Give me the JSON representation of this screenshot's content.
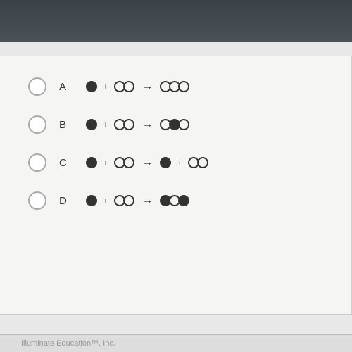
{
  "question": {
    "options": [
      {
        "id": "A",
        "label": "A",
        "equation": {
          "left": [
            {
              "type": "single",
              "atoms": [
                "dark"
              ]
            },
            {
              "type": "plus"
            },
            {
              "type": "molecule",
              "atoms": [
                "light",
                "light"
              ]
            }
          ],
          "right": [
            {
              "type": "molecule",
              "atoms": [
                "light",
                "light",
                "light"
              ]
            }
          ]
        }
      },
      {
        "id": "B",
        "label": "B",
        "equation": {
          "left": [
            {
              "type": "single",
              "atoms": [
                "dark"
              ]
            },
            {
              "type": "plus"
            },
            {
              "type": "molecule",
              "atoms": [
                "light",
                "light"
              ]
            }
          ],
          "right": [
            {
              "type": "molecule",
              "atoms": [
                "light",
                "dark",
                "light"
              ]
            }
          ]
        }
      },
      {
        "id": "C",
        "label": "C",
        "equation": {
          "left": [
            {
              "type": "single",
              "atoms": [
                "dark"
              ]
            },
            {
              "type": "plus"
            },
            {
              "type": "molecule",
              "atoms": [
                "light",
                "light"
              ]
            }
          ],
          "right": [
            {
              "type": "single",
              "atoms": [
                "dark"
              ]
            },
            {
              "type": "plus"
            },
            {
              "type": "molecule",
              "atoms": [
                "light",
                "light"
              ]
            }
          ]
        }
      },
      {
        "id": "D",
        "label": "D",
        "equation": {
          "left": [
            {
              "type": "single",
              "atoms": [
                "dark"
              ]
            },
            {
              "type": "plus"
            },
            {
              "type": "molecule",
              "atoms": [
                "light",
                "light"
              ]
            }
          ],
          "right": [
            {
              "type": "molecule",
              "atoms": [
                "dark",
                "light",
                "dark"
              ]
            }
          ]
        }
      }
    ]
  },
  "footer": {
    "text": "Illuminate Education™, Inc."
  },
  "colors": {
    "background": "#4a5258",
    "panel": "#f5f5f3",
    "atom_dark": "#333333",
    "atom_light_border": "#333333",
    "radio_border": "#aaaaaa"
  }
}
